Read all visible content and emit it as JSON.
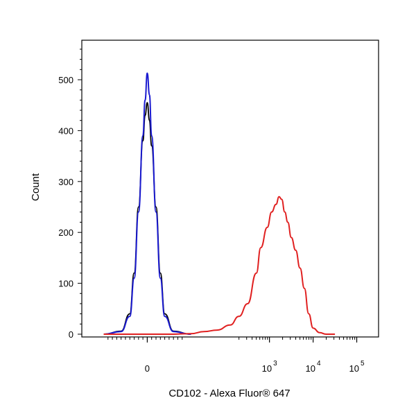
{
  "chart_data": {
    "type": "line",
    "title": "",
    "xlabel": "CD102 - Alexa Fluor® 647",
    "ylabel": "Count",
    "ylim": [
      0,
      580
    ],
    "xscale": "biexponential",
    "x_ticks": [
      {
        "base": "0",
        "exp": ""
      },
      {
        "base": "10",
        "exp": "3"
      },
      {
        "base": "10",
        "exp": "4"
      },
      {
        "base": "10",
        "exp": "5"
      }
    ],
    "y_ticks": [
      "0",
      "100",
      "200",
      "300",
      "400",
      "500"
    ],
    "y_tick_values": [
      0,
      100,
      200,
      300,
      400,
      500
    ],
    "grid": false,
    "legend": "none",
    "series": [
      {
        "color": "#000000",
        "x": [
          -1,
          -0.6,
          -0.4,
          -0.3,
          -0.2,
          -0.1,
          -0.05,
          0,
          0.05,
          0.1,
          0.2,
          0.3,
          0.4,
          0.6,
          1
        ],
        "y": [
          0,
          6,
          40,
          120,
          250,
          380,
          430,
          455,
          420,
          370,
          250,
          120,
          40,
          6,
          0
        ]
      },
      {
        "color": "#1a1ad0",
        "x": [
          -1,
          -0.6,
          -0.4,
          -0.3,
          -0.2,
          -0.1,
          -0.05,
          0,
          0.05,
          0.1,
          0.2,
          0.3,
          0.4,
          0.6,
          1
        ],
        "y": [
          0,
          5,
          35,
          110,
          240,
          390,
          460,
          513,
          470,
          390,
          240,
          110,
          35,
          5,
          0
        ]
      },
      {
        "color": "#e02020",
        "x": [
          -1,
          0.5,
          1,
          1.3,
          1.6,
          1.9,
          2.1,
          2.3,
          2.5,
          2.6,
          2.75,
          2.85,
          2.95,
          3.02,
          3.08,
          3.15,
          3.22,
          3.3,
          3.4,
          3.5,
          3.6,
          3.7,
          3.8,
          3.95,
          4.1,
          4.3
        ],
        "y": [
          0,
          0,
          1,
          5,
          8,
          18,
          35,
          60,
          120,
          170,
          210,
          240,
          255,
          270,
          265,
          240,
          220,
          190,
          165,
          130,
          90,
          40,
          12,
          3,
          0,
          0
        ]
      }
    ]
  }
}
